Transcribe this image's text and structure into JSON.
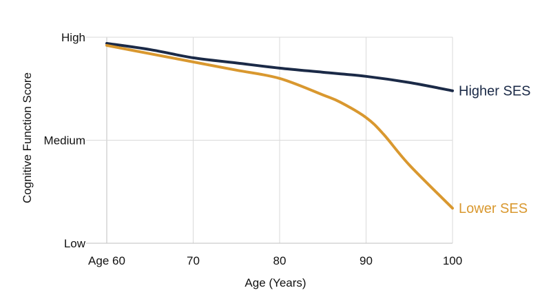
{
  "chart_data": {
    "type": "line",
    "xlabel": "Age (Years)",
    "ylabel": "Cognitive Function Score",
    "x_ticks": [
      {
        "value": 60,
        "label": "Age 60"
      },
      {
        "value": 70,
        "label": "70"
      },
      {
        "value": 80,
        "label": "80"
      },
      {
        "value": 90,
        "label": "90"
      },
      {
        "value": 100,
        "label": "100"
      }
    ],
    "y_ticks": [
      {
        "value": 0,
        "label": "Low"
      },
      {
        "value": 50,
        "label": "Medium"
      },
      {
        "value": 100,
        "label": "High"
      }
    ],
    "xlim": [
      60,
      100
    ],
    "ylim": [
      0,
      100
    ],
    "grid": true,
    "legend": "inline labels at line ends",
    "series": [
      {
        "name": "Higher SES",
        "color": "#1b2a47",
        "x": [
          60,
          65,
          70,
          75,
          80,
          85,
          90,
          95,
          100
        ],
        "y": [
          97,
          94,
          90,
          87.5,
          85,
          83,
          81,
          78,
          74
        ]
      },
      {
        "name": "Lower SES",
        "color": "#d9982f",
        "x": [
          60,
          65,
          70,
          75,
          80,
          85,
          87,
          90,
          92,
          95,
          100
        ],
        "y": [
          96,
          92,
          88,
          84,
          80,
          72,
          68.5,
          61,
          53,
          38,
          17
        ]
      }
    ]
  }
}
